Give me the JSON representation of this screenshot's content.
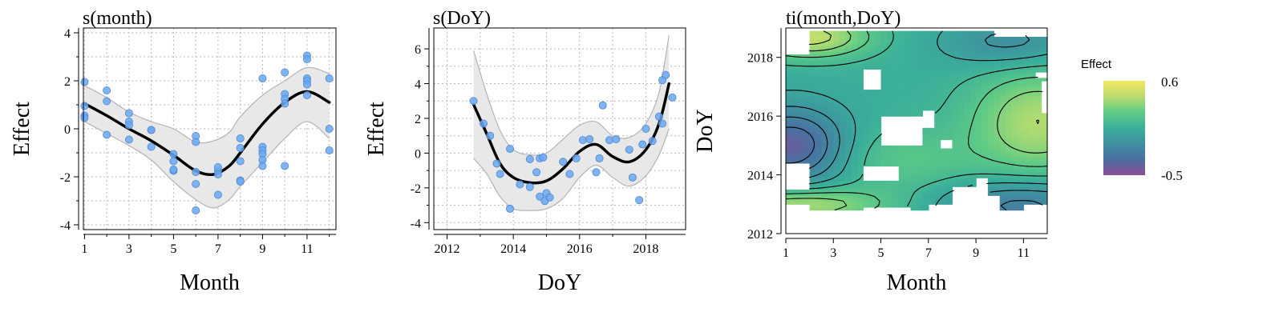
{
  "chart_data": [
    {
      "type": "line",
      "title": "s(month)",
      "xlabel": "Month",
      "ylabel": "Effect",
      "xlim": [
        0.95,
        12.3
      ],
      "ylim": [
        -4.2,
        4.2
      ],
      "xticks": [
        1,
        3,
        5,
        7,
        9,
        11
      ],
      "yticks": [
        -4,
        -2,
        0,
        2,
        4
      ],
      "minor_xticks": [
        2,
        4,
        6,
        8,
        10,
        12
      ],
      "minor_yticks": [
        -3,
        -1,
        1,
        3
      ],
      "grid": true,
      "colors": {
        "ribbon": "#e8e8e8",
        "ribbon_edge": "#b4b4b4",
        "line": "#000000",
        "points": "#6aa8f0",
        "points_edge": "#4a88d8"
      },
      "fit": {
        "x": [
          1,
          2,
          3,
          4,
          5,
          6,
          6.8,
          7.5,
          8,
          9,
          10,
          11,
          12
        ],
        "y": [
          1.05,
          0.55,
          0.0,
          -0.5,
          -1.1,
          -1.75,
          -1.9,
          -1.55,
          -1.0,
          0.2,
          1.1,
          1.55,
          1.1
        ],
        "lower": [
          0.3,
          -0.2,
          -0.7,
          -1.3,
          -2.2,
          -2.95,
          -3.3,
          -2.95,
          -2.4,
          -1.4,
          -0.4,
          0.3,
          -0.4
        ],
        "upper": [
          1.8,
          1.3,
          0.7,
          0.3,
          0.0,
          -0.55,
          -0.5,
          -0.15,
          0.5,
          1.4,
          2.0,
          2.55,
          2.3
        ]
      },
      "points": [
        [
          1,
          1.95
        ],
        [
          1,
          0.95
        ],
        [
          1,
          0.55
        ],
        [
          1,
          0.45
        ],
        [
          2,
          1.6
        ],
        [
          2,
          1.15
        ],
        [
          2,
          -0.25
        ],
        [
          3,
          0.65
        ],
        [
          3,
          0.3
        ],
        [
          3,
          0.15
        ],
        [
          3,
          -0.45
        ],
        [
          4,
          -0.05
        ],
        [
          4,
          -0.75
        ],
        [
          4,
          -0.05
        ],
        [
          5,
          -1.05
        ],
        [
          5,
          -1.35
        ],
        [
          5,
          -1.75
        ],
        [
          5,
          -1.7
        ],
        [
          6,
          -0.3
        ],
        [
          6,
          -0.55
        ],
        [
          6,
          -1.8
        ],
        [
          6,
          -2.3
        ],
        [
          6,
          -3.4
        ],
        [
          7,
          -1.75
        ],
        [
          7,
          -1.6
        ],
        [
          7,
          -2.75
        ],
        [
          7,
          -1.9
        ],
        [
          8,
          -0.4
        ],
        [
          8,
          -0.8
        ],
        [
          8,
          -1.35
        ],
        [
          8,
          -2.15
        ],
        [
          8,
          -2.2
        ],
        [
          9,
          2.1
        ],
        [
          9,
          -0.75
        ],
        [
          9,
          -0.9
        ],
        [
          9,
          -1.05
        ],
        [
          9,
          -1.3
        ],
        [
          9,
          -1.55
        ],
        [
          10,
          2.35
        ],
        [
          10,
          1.45
        ],
        [
          10,
          1.25
        ],
        [
          10,
          1.05
        ],
        [
          10,
          -1.55
        ],
        [
          11,
          3.05
        ],
        [
          11,
          2.9
        ],
        [
          11,
          2.1
        ],
        [
          11,
          2.0
        ],
        [
          11,
          1.85
        ],
        [
          11,
          1.4
        ],
        [
          12,
          2.1
        ],
        [
          12,
          0.0
        ],
        [
          12,
          -0.9
        ]
      ]
    },
    {
      "type": "line",
      "title": "s(DoY)",
      "xlabel": "DoY",
      "ylabel": "Effect",
      "xlim": [
        2011.6,
        2019.2
      ],
      "ylim": [
        -4.4,
        7.2
      ],
      "xticks": [
        2012,
        2014,
        2016,
        2018
      ],
      "yticks": [
        -4,
        -2,
        0,
        2,
        4,
        6
      ],
      "minor_xticks": [
        2013,
        2015,
        2017
      ],
      "minor_yticks": [
        -3,
        -1,
        1,
        3,
        5
      ],
      "grid": true,
      "colors": {
        "ribbon": "#e8e8e8",
        "ribbon_edge": "#b4b4b4",
        "line": "#000000",
        "points": "#6aa8f0",
        "points_edge": "#4a88d8"
      },
      "fit": {
        "x": [
          2012.8,
          2013.2,
          2013.6,
          2014.0,
          2014.5,
          2015.0,
          2015.5,
          2016.0,
          2016.5,
          2017.0,
          2017.5,
          2018.0,
          2018.4,
          2018.7
        ],
        "y": [
          2.8,
          1.1,
          -0.6,
          -1.4,
          -1.7,
          -1.6,
          -0.9,
          0.1,
          0.5,
          -0.2,
          -0.5,
          0.2,
          1.7,
          4.0
        ],
        "lower": [
          -0.3,
          -1.2,
          -2.5,
          -3.2,
          -3.3,
          -3.2,
          -2.6,
          -1.4,
          -0.7,
          -1.4,
          -1.9,
          -1.3,
          -0.1,
          1.4
        ],
        "upper": [
          5.9,
          3.4,
          1.3,
          0.2,
          -0.1,
          0.0,
          0.8,
          1.6,
          1.8,
          1.0,
          0.9,
          1.7,
          3.5,
          6.8
        ]
      },
      "points": [
        [
          2012.8,
          3.0
        ],
        [
          2013.1,
          1.7
        ],
        [
          2013.3,
          1.0
        ],
        [
          2013.5,
          -0.6
        ],
        [
          2013.6,
          -1.2
        ],
        [
          2013.9,
          0.25
        ],
        [
          2013.9,
          -3.2
        ],
        [
          2014.2,
          -1.8
        ],
        [
          2014.5,
          -1.95
        ],
        [
          2014.5,
          -0.35
        ],
        [
          2014.7,
          -1.1
        ],
        [
          2014.8,
          -2.5
        ],
        [
          2014.8,
          -0.3
        ],
        [
          2014.9,
          -0.25
        ],
        [
          2014.95,
          -2.75
        ],
        [
          2015.0,
          -2.3
        ],
        [
          2015.1,
          -2.55
        ],
        [
          2015.5,
          -0.5
        ],
        [
          2015.7,
          -1.2
        ],
        [
          2015.9,
          -0.3
        ],
        [
          2016.1,
          0.75
        ],
        [
          2016.3,
          0.8
        ],
        [
          2016.5,
          -1.1
        ],
        [
          2016.6,
          -0.3
        ],
        [
          2016.7,
          2.75
        ],
        [
          2016.9,
          0.75
        ],
        [
          2017.1,
          0.8
        ],
        [
          2017.5,
          0.2
        ],
        [
          2017.6,
          -1.4
        ],
        [
          2017.8,
          -2.7
        ],
        [
          2017.9,
          0.5
        ],
        [
          2018.0,
          1.4
        ],
        [
          2018.2,
          0.7
        ],
        [
          2018.4,
          2.1
        ],
        [
          2018.5,
          1.7
        ],
        [
          2018.5,
          4.2
        ],
        [
          2018.6,
          4.5
        ],
        [
          2018.8,
          3.2
        ]
      ]
    },
    {
      "type": "heatmap",
      "title": "ti(month,DoY)",
      "xlabel": "Month",
      "ylabel": "DoY",
      "xlim": [
        1,
        12
      ],
      "ylim": [
        2012,
        2019
      ],
      "xticks": [
        1,
        3,
        5,
        7,
        9,
        11
      ],
      "yticks": [
        2012,
        2014,
        2016,
        2018
      ],
      "legend": {
        "title": "Effect",
        "max": 0.6,
        "min": -0.5,
        "max_label": "0.6",
        "min_label": "-0.5",
        "placement": "right"
      },
      "colorscale": [
        "#8a4f96",
        "#4a6fa0",
        "#3f8fa0",
        "#3aaf9a",
        "#5fcb85",
        "#b8dd6e",
        "#f3e860"
      ],
      "contour_color": "#000000",
      "contour_levels": [
        -0.4,
        -0.3,
        -0.2,
        -0.1,
        0.0,
        0.1,
        0.2,
        0.3,
        0.4,
        0.5
      ],
      "data_range": {
        "x": [
          1,
          12
        ],
        "y": [
          2012.8,
          2018.9
        ]
      },
      "masked_regions": [
        {
          "x": [
            1.0,
            2.0
          ],
          "y": [
            2013.5,
            2014.4
          ]
        },
        {
          "x": [
            4.2,
            5.0
          ],
          "y": [
            2016.9,
            2017.6
          ]
        },
        {
          "x": [
            5.0,
            6.8
          ],
          "y": [
            2015.0,
            2016.0
          ]
        },
        {
          "x": [
            6.8,
            7.3
          ],
          "y": [
            2015.6,
            2016.2
          ]
        },
        {
          "x": [
            4.2,
            5.7
          ],
          "y": [
            2013.8,
            2014.3
          ]
        },
        {
          "x": [
            1.0,
            1.9
          ],
          "y": [
            2018.1,
            2018.9
          ]
        },
        {
          "x": [
            9.8,
            12.0
          ],
          "y": [
            2018.7,
            2018.9
          ]
        },
        {
          "x": [
            1.0,
            2.0
          ],
          "y": [
            2012.8,
            2013.0
          ]
        },
        {
          "x": [
            8.1,
            9.6
          ],
          "y": [
            2012.8,
            2013.6
          ]
        },
        {
          "x": [
            7.1,
            8.1
          ],
          "y": [
            2012.8,
            2013.0
          ]
        },
        {
          "x": [
            9.6,
            10.0
          ],
          "y": [
            2012.8,
            2013.3
          ]
        },
        {
          "x": [
            11.0,
            12.0
          ],
          "y": [
            2012.8,
            2013.0
          ]
        },
        {
          "x": [
            4.2,
            6.2
          ],
          "y": [
            2012.8,
            2012.9
          ]
        },
        {
          "x": [
            11.8,
            12.0
          ],
          "y": [
            2016.1,
            2017.2
          ]
        },
        {
          "x": [
            11.6,
            12.0
          ],
          "y": [
            2017.3,
            2017.5
          ]
        },
        {
          "x": [
            7.6,
            8.0
          ],
          "y": [
            2014.9,
            2015.2
          ]
        },
        {
          "x": [
            8.9,
            9.4
          ],
          "y": [
            2013.6,
            2013.9
          ]
        }
      ]
    }
  ]
}
